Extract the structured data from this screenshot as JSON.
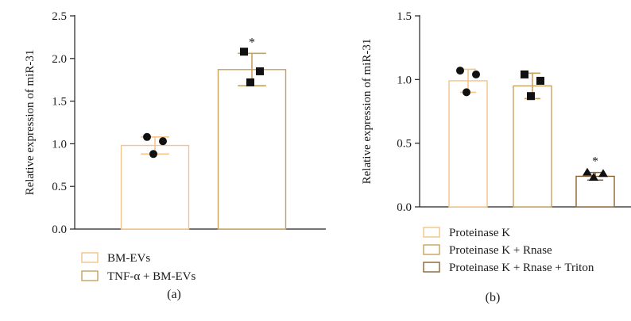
{
  "chart_data": [
    {
      "type": "bar",
      "panel_label": "(a)",
      "ylabel": "Relative expression of miR-31",
      "ylim": [
        0,
        2.5
      ],
      "yticks": [
        "0.0",
        "0.5",
        "1.0",
        "1.5",
        "2.0",
        "2.5"
      ],
      "categories": [
        "BM-EVs",
        "TNF-α + BM-EVs"
      ],
      "values": [
        0.98,
        1.87
      ],
      "sd": [
        0.1,
        0.19
      ],
      "points": [
        [
          1.08,
          1.03,
          0.88
        ],
        [
          2.08,
          1.85,
          1.72
        ]
      ],
      "markers": [
        "circle",
        "square"
      ],
      "annotations": [
        "",
        "*"
      ],
      "legend": [
        "BM-EVs",
        "TNF-α + BM-EVs"
      ],
      "legend_position": "bottom-left",
      "colors": [
        "#f6c48a",
        "#c8a15e"
      ]
    },
    {
      "type": "bar",
      "panel_label": "(b)",
      "ylabel": "Relative expression of miR-31",
      "ylim": [
        0,
        1.5
      ],
      "yticks": [
        "0.0",
        "0.5",
        "1.0",
        "1.5"
      ],
      "categories": [
        "Proteinase K",
        "Proteinase K + Rnase",
        "Proteinase K + Rnase + Triton"
      ],
      "values": [
        0.99,
        0.95,
        0.24
      ],
      "sd": [
        0.09,
        0.1,
        0.03
      ],
      "points": [
        [
          1.07,
          1.04,
          0.9
        ],
        [
          1.04,
          0.99,
          0.87
        ],
        [
          0.27,
          0.26,
          0.23
        ]
      ],
      "markers": [
        "circle",
        "square",
        "triangle"
      ],
      "annotations": [
        "",
        "",
        "*"
      ],
      "legend": [
        "Proteinase K",
        "Proteinase K + Rnase",
        "Proteinase K + Rnase + Triton"
      ],
      "legend_position": "bottom-left",
      "colors": [
        "#f6c48a",
        "#c8a15e",
        "#8a6336"
      ]
    }
  ]
}
